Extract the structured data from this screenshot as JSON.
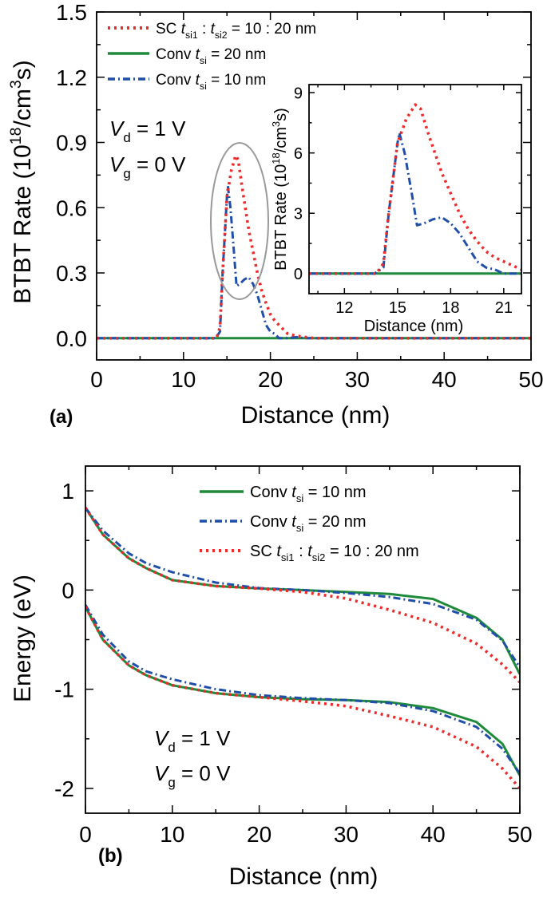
{
  "colors": {
    "sc": "#ee2a2a",
    "conv20_a": "#1f8a3a",
    "conv10_a": "#1f4fa8",
    "conv10_b": "#1f8a3a",
    "conv20_b": "#1f4fa8",
    "ellipse": "#999999"
  },
  "chart_data": [
    {
      "panel": "(a)",
      "type": "line",
      "xlabel": "Distance (nm)",
      "ylabel": {
        "main": "BTBT Rate (10",
        "sup1": "18",
        "mid": "/cm",
        "sup2": "3",
        "end": "s)"
      },
      "xlim": [
        0,
        50
      ],
      "ylim": [
        -0.1,
        1.5
      ],
      "xticks": [
        "0",
        "10",
        "20",
        "30",
        "40",
        "50"
      ],
      "yticks": [
        "0.0",
        "0.3",
        "0.6",
        "0.9",
        "1.2",
        "1.5"
      ],
      "annotation": {
        "vd": "V",
        "vd_sub": "d",
        "vd_rest": " = 1 V",
        "vg": "V",
        "vg_sub": "g",
        "vg_rest": " = 0 V"
      },
      "legend": [
        {
          "key": "sc",
          "style": "dotted",
          "pre": "SC ",
          "t1": "t",
          "s1": "si1",
          "mid": " : ",
          "t2": "t",
          "s2": "si2",
          "post": " =  10 : 20 nm"
        },
        {
          "key": "conv20_a",
          "style": "solid",
          "pre": "Conv ",
          "t1": "t",
          "s1": "si",
          "post": " =  20 nm"
        },
        {
          "key": "conv10_a",
          "style": "dashdot",
          "pre": "Conv ",
          "t1": "t",
          "s1": "si",
          "post": " =  10 nm"
        }
      ],
      "series": [
        {
          "key": "sc",
          "x": [
            0,
            13.8,
            14.2,
            14.5,
            15,
            15.5,
            16,
            16.3,
            16.8,
            17.5,
            18,
            18.5,
            19,
            19.5,
            20,
            20.5,
            21,
            21.5,
            22,
            23,
            24,
            25,
            50
          ],
          "y": [
            0,
            0,
            0.05,
            0.3,
            0.65,
            0.77,
            0.84,
            0.82,
            0.68,
            0.5,
            0.4,
            0.3,
            0.22,
            0.16,
            0.11,
            0.08,
            0.06,
            0.04,
            0.02,
            0.01,
            0.005,
            0,
            0
          ]
        },
        {
          "key": "conv20_a",
          "x": [
            0,
            50
          ],
          "y": [
            0,
            0
          ]
        },
        {
          "key": "conv10_a",
          "x": [
            0,
            13.7,
            14.2,
            14.5,
            15,
            15.1,
            15.4,
            15.8,
            16.1,
            16.5,
            17,
            17.5,
            18,
            18.5,
            19,
            19.5,
            20,
            20.5,
            21,
            22,
            23,
            24,
            50
          ],
          "y": [
            0,
            0,
            0.03,
            0.3,
            0.65,
            0.7,
            0.6,
            0.4,
            0.24,
            0.25,
            0.27,
            0.28,
            0.25,
            0.2,
            0.13,
            0.06,
            0.03,
            0.02,
            0,
            0,
            0.005,
            0,
            0
          ]
        }
      ],
      "inset": {
        "xlabel": "Distance (nm)",
        "ylabel": {
          "main": "BTBT Rate (10",
          "sup1": "18",
          "mid": "/cm",
          "sup2": "3",
          "end": "s)"
        },
        "xlim": [
          10,
          22
        ],
        "ylim": [
          -1,
          9.4
        ],
        "xticks": [
          "12",
          "15",
          "18",
          "21"
        ],
        "yticks": [
          "0",
          "3",
          "6",
          "9"
        ],
        "series": [
          {
            "key": "sc",
            "x": [
              10,
              13.8,
              14.2,
              14.5,
              15,
              15.5,
              16,
              16.3,
              16.8,
              17.5,
              18,
              18.5,
              19,
              19.5,
              20,
              20.5,
              21,
              21.5,
              22
            ],
            "y": [
              0,
              0,
              0.5,
              3,
              6.5,
              7.7,
              8.4,
              8.2,
              6.8,
              5,
              4,
              3,
              2.2,
              1.6,
              1.1,
              0.8,
              0.6,
              0.4,
              0.2
            ]
          },
          {
            "key": "conv20_a",
            "x": [
              10,
              22
            ],
            "y": [
              0,
              0
            ]
          },
          {
            "key": "conv10_a",
            "x": [
              10,
              13.7,
              14.2,
              14.5,
              15,
              15.1,
              15.4,
              15.8,
              16.1,
              16.5,
              17,
              17.5,
              18,
              18.5,
              19,
              19.5,
              20,
              20.5,
              21,
              22
            ],
            "y": [
              0,
              0,
              0.3,
              3,
              6.5,
              7,
              6,
              4,
              2.4,
              2.5,
              2.7,
              2.8,
              2.5,
              2,
              1.3,
              0.6,
              0.3,
              0.2,
              0,
              0
            ]
          }
        ]
      }
    },
    {
      "panel": "(b)",
      "type": "line",
      "xlabel": "Distance (nm)",
      "ylabel": "Energy (eV)",
      "xlim": [
        0,
        50
      ],
      "ylim": [
        -2.25,
        1.25
      ],
      "xticks": [
        "0",
        "10",
        "20",
        "30",
        "40",
        "50"
      ],
      "yticks": [
        "-2",
        "-1",
        "0",
        "1"
      ],
      "annotation": {
        "vd": "V",
        "vd_sub": "d",
        "vd_rest": " = 1 V",
        "vg": "V",
        "vg_sub": "g",
        "vg_rest": " = 0 V"
      },
      "legend": [
        {
          "key": "conv10_b",
          "style": "solid",
          "pre": "Conv ",
          "t1": "t",
          "s1": "si",
          "post": " =  10 nm"
        },
        {
          "key": "conv20_b",
          "style": "dashdot",
          "pre": "Conv ",
          "t1": "t",
          "s1": "si",
          "post": " =  20 nm"
        },
        {
          "key": "sc",
          "style": "dotted",
          "pre": "SC ",
          "t1": "t",
          "s1": "si1",
          "mid": " : ",
          "t2": "t",
          "s2": "si2",
          "post": " =  10 : 20 nm"
        }
      ],
      "series": [
        {
          "key": "conv10_b",
          "band": "conduction",
          "x": [
            0,
            2,
            5,
            7,
            10,
            15,
            20,
            25,
            30,
            35,
            40,
            45,
            48,
            50
          ],
          "y": [
            0.83,
            0.56,
            0.32,
            0.22,
            0.1,
            0.04,
            0.016,
            0,
            -0.02,
            -0.04,
            -0.09,
            -0.28,
            -0.5,
            -0.85
          ]
        },
        {
          "key": "conv20_b",
          "band": "conduction",
          "x": [
            0,
            2,
            5,
            7,
            10,
            15,
            20,
            25,
            30,
            35,
            40,
            45,
            48,
            50
          ],
          "y": [
            0.83,
            0.6,
            0.37,
            0.27,
            0.18,
            0.075,
            0.02,
            0,
            -0.03,
            -0.07,
            -0.14,
            -0.3,
            -0.51,
            -0.78
          ]
        },
        {
          "key": "sc",
          "band": "conduction",
          "x": [
            0,
            2,
            5,
            7,
            10,
            15,
            20,
            25,
            30,
            35,
            40,
            45,
            48,
            50
          ],
          "y": [
            0.83,
            0.56,
            0.32,
            0.22,
            0.1,
            0.04,
            0.016,
            -0.02,
            -0.085,
            -0.2,
            -0.33,
            -0.54,
            -0.75,
            -0.93
          ]
        },
        {
          "key": "conv10_b",
          "band": "valence",
          "x": [
            0,
            2,
            5,
            7,
            10,
            15,
            20,
            25,
            30,
            35,
            40,
            45,
            48,
            50
          ],
          "y": [
            -0.17,
            -0.5,
            -0.76,
            -0.86,
            -0.96,
            -1.04,
            -1.08,
            -1.1,
            -1.11,
            -1.13,
            -1.19,
            -1.33,
            -1.55,
            -1.87
          ]
        },
        {
          "key": "conv20_b",
          "band": "valence",
          "x": [
            0,
            2,
            5,
            7,
            10,
            15,
            20,
            25,
            30,
            35,
            40,
            45,
            48,
            50
          ],
          "y": [
            -0.15,
            -0.45,
            -0.72,
            -0.82,
            -0.9,
            -1.0,
            -1.06,
            -1.09,
            -1.11,
            -1.14,
            -1.22,
            -1.38,
            -1.6,
            -1.85
          ]
        },
        {
          "key": "sc",
          "band": "valence",
          "x": [
            0,
            2,
            5,
            7,
            10,
            15,
            20,
            25,
            30,
            35,
            40,
            45,
            48,
            50
          ],
          "y": [
            -0.17,
            -0.5,
            -0.76,
            -0.86,
            -0.96,
            -1.04,
            -1.08,
            -1.12,
            -1.17,
            -1.27,
            -1.38,
            -1.58,
            -1.8,
            -2.0
          ]
        }
      ]
    }
  ]
}
